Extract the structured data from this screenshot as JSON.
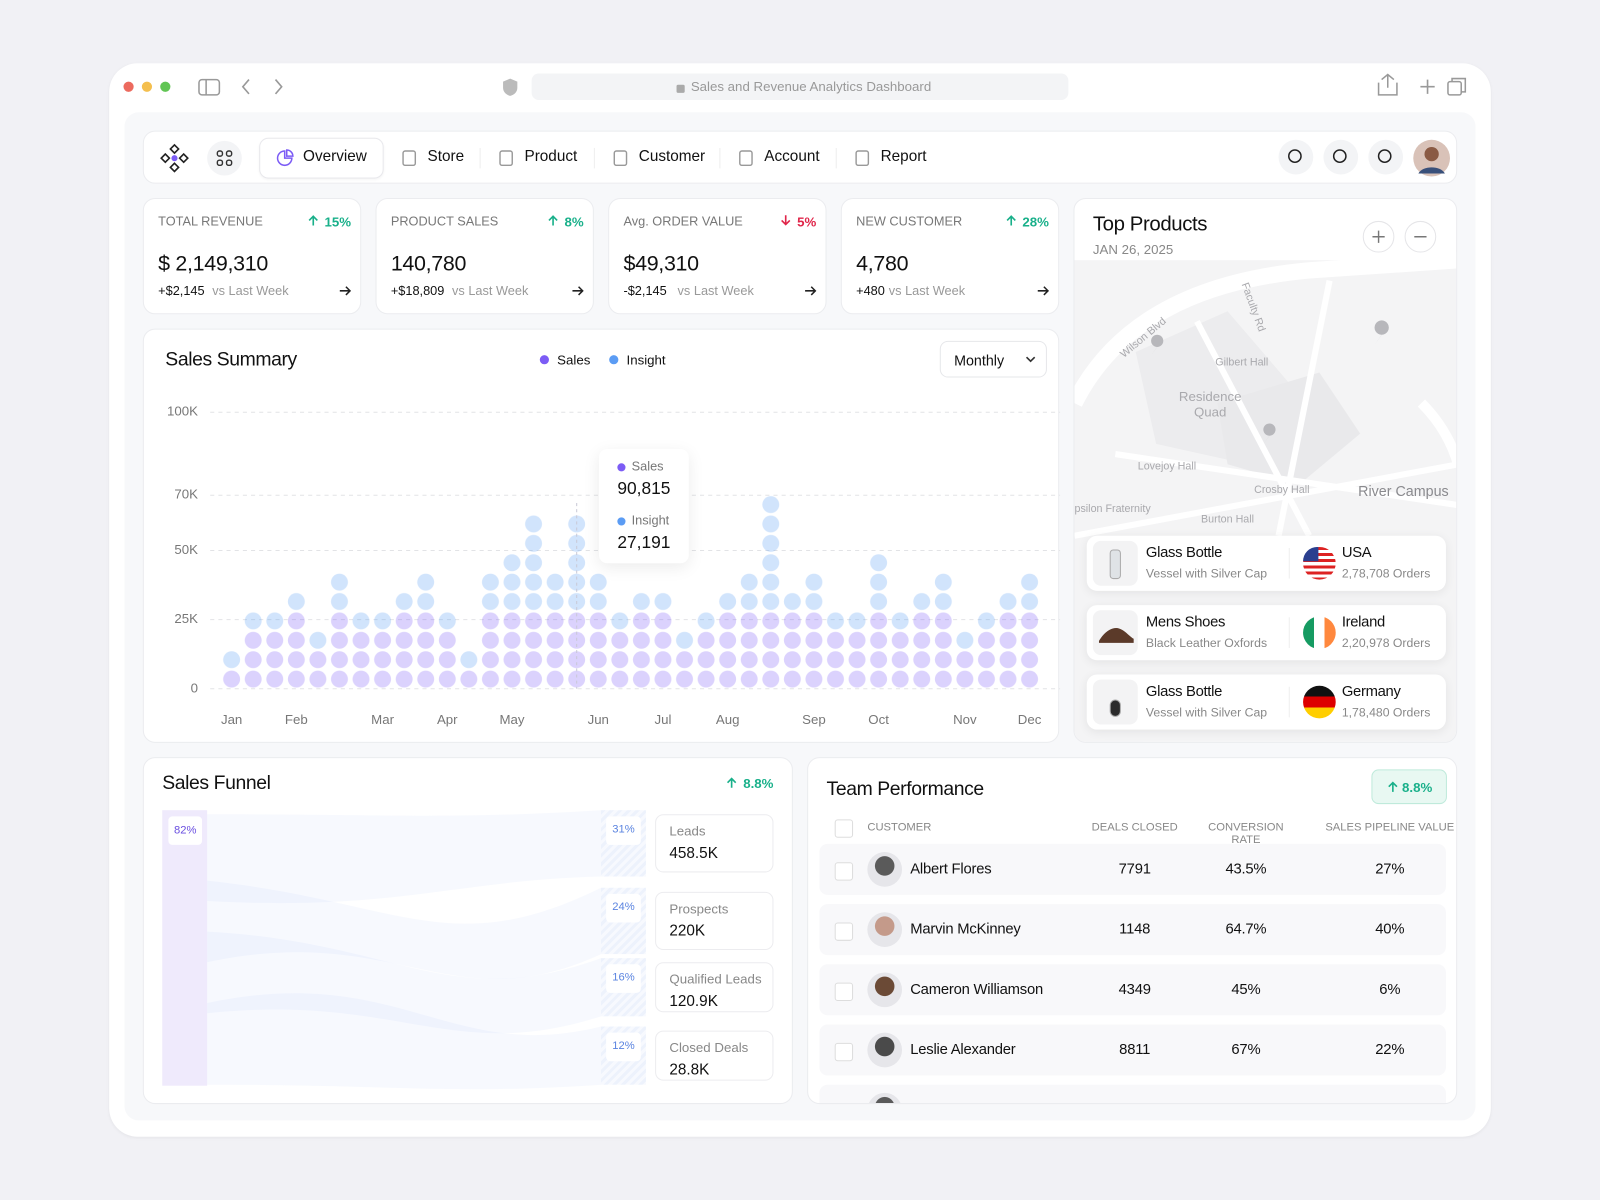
{
  "browser": {
    "url": "Sales and Revenue Analytics Dashboard"
  },
  "nav": {
    "items": [
      "Overview",
      "Store",
      "Product",
      "Customer",
      "Account",
      "Report"
    ]
  },
  "kpis": [
    {
      "label": "TOTAL REVENUE",
      "change": "15%",
      "direction": "up",
      "value": "$ 2,149,310",
      "delta": "+$2,145",
      "compare": "vs Last Week"
    },
    {
      "label": "PRODUCT SALES",
      "change": "8%",
      "direction": "up",
      "value": "140,780",
      "delta": "+$18,809",
      "compare": "vs Last Week"
    },
    {
      "label": "Avg. ORDER VALUE",
      "change": "5%",
      "direction": "down",
      "value": "$49,310",
      "delta": "-$2,145",
      "compare": "vs Last Week"
    },
    {
      "label": "NEW CUSTOMER",
      "change": "28%",
      "direction": "up",
      "value": "4,780",
      "delta": "+480",
      "compare": "vs Last Week"
    }
  ],
  "chart_data": {
    "type": "dotbar",
    "title": "Sales Summary",
    "period": "Monthly",
    "categories": [
      "Jan",
      null,
      null,
      "Feb",
      null,
      null,
      null,
      "Mar",
      null,
      null,
      "Apr",
      null,
      null,
      "May",
      null,
      null,
      null,
      "Jun",
      null,
      null,
      "Jul",
      null,
      null,
      "Aug",
      null,
      null,
      null,
      "Sep",
      null,
      null,
      "Oct",
      null,
      null,
      null,
      "Nov",
      null,
      null,
      "Dec"
    ],
    "series": [
      {
        "name": "Sales",
        "color": "#7c5cf5",
        "values": [
          7000,
          21000,
          21000,
          28000,
          14000,
          28000,
          21000,
          21000,
          28000,
          28000,
          21000,
          7000,
          28000,
          28000,
          28000,
          28000,
          28000,
          28000,
          21000,
          28000,
          28000,
          14000,
          21000,
          28000,
          28000,
          28000,
          28000,
          28000,
          21000,
          21000,
          28000,
          21000,
          28000,
          28000,
          14000,
          21000,
          28000,
          28000
        ]
      },
      {
        "name": "Insight",
        "color": "#5b9cf4",
        "values": [
          7000,
          7000,
          7000,
          7000,
          7000,
          14000,
          7000,
          7000,
          7000,
          14000,
          7000,
          7000,
          14000,
          21000,
          35000,
          14000,
          35000,
          14000,
          7000,
          7000,
          7000,
          7000,
          7000,
          7000,
          14000,
          42000,
          7000,
          14000,
          7000,
          7000,
          21000,
          7000,
          7000,
          14000,
          7000,
          7000,
          7000,
          14000
        ]
      }
    ],
    "stacked": true,
    "ylim": [
      0,
      100000
    ],
    "yticks": [
      0,
      {
        "value": 25000,
        "label": "25K"
      },
      {
        "value": 50000,
        "label": "50K"
      },
      {
        "value": 70000,
        "label": "70K"
      },
      {
        "value": 100000,
        "label": "100K"
      }
    ],
    "grid": true,
    "tooltip": [
      {
        "name": "Sales",
        "value": "90,815"
      },
      {
        "name": "Insight",
        "value": "27,191"
      }
    ]
  },
  "top_products": {
    "title": "Top Products",
    "date": "JAN 26, 2025",
    "map_labels": [
      "Wilson Blvd",
      "Faculty Rd",
      "Gilbert Hall",
      "Residence Quad",
      "Lovejoy Hall",
      "Crosby Hall",
      "River Campus",
      "Burton Hall",
      "psilon Fraternity"
    ],
    "items": [
      {
        "name": "Glass Bottle",
        "desc": "Vessel with Silver Cap",
        "country": "USA",
        "orders": "2,78,708 Orders"
      },
      {
        "name": "Mens Shoes",
        "desc": "Black Leather Oxfords",
        "country": "Ireland",
        "orders": "2,20,978 Orders"
      },
      {
        "name": "Glass Bottle",
        "desc": "Vessel with Silver Cap",
        "country": "Germany",
        "orders": "1,78,480 Orders"
      }
    ]
  },
  "sales_funnel": {
    "title": "Sales Funnel",
    "change": "8.8%",
    "total_share": "82%",
    "stages": [
      {
        "share": "31%",
        "label": "Leads",
        "value": "458.5K"
      },
      {
        "share": "24%",
        "label": "Prospects",
        "value": "220K"
      },
      {
        "share": "16%",
        "label": "Qualified Leads",
        "value": "120.9K"
      },
      {
        "share": "12%",
        "label": "Closed Deals",
        "value": "28.8K"
      }
    ]
  },
  "team_performance": {
    "title": "Team Performance",
    "change": "8.8%",
    "columns": [
      "CUSTOMER",
      "DEALS CLOSED",
      "CONVERSION RATE",
      "SALES PIPELINE VALUE"
    ],
    "rows": [
      [
        "Albert Flores",
        "7791",
        "43.5%",
        "27%"
      ],
      [
        "Marvin McKinney",
        "1148",
        "64.7%",
        "40%"
      ],
      [
        "Cameron Williamson",
        "4349",
        "45%",
        "6%"
      ],
      [
        "Leslie Alexander",
        "8811",
        "67%",
        "22%"
      ]
    ]
  }
}
